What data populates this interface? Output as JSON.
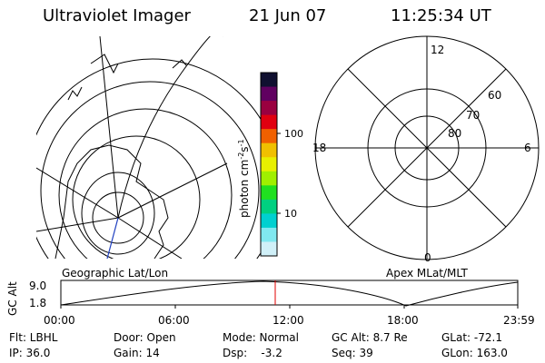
{
  "header": {
    "instrument": "Ultraviolet Imager",
    "date": "21 Jun 07",
    "time": "11:25:34 UT"
  },
  "colorbar": {
    "unit_label": "photon cm",
    "unit_exp1": "-2",
    "unit_mid": "s",
    "unit_exp2": "-1",
    "tick_100": "100",
    "tick_10": "10",
    "colors": [
      "#101030",
      "#600060",
      "#9a0040",
      "#e00010",
      "#f06000",
      "#f0c000",
      "#e8f000",
      "#a0f000",
      "#20e020",
      "#00d080",
      "#00d0d0",
      "#80e8f0",
      "#d0f0f8"
    ]
  },
  "left_map": {
    "label": "Geographic Lat/Lon"
  },
  "right_map": {
    "label": "Apex MLat/MLT",
    "mlt_12": "12",
    "mlt_18": "18",
    "mlt_6": "6",
    "mlt_0": "0",
    "lat_60": "60",
    "lat_70": "70",
    "lat_80": "80"
  },
  "orbit": {
    "axis_title": "GC Alt",
    "y_top": "9.0",
    "y_bottom": "1.8",
    "x_ticks": [
      "00:00",
      "06:00",
      "12:00",
      "18:00",
      "23:59"
    ],
    "marker_color": "#e00000"
  },
  "info": {
    "filter": "Flt: LBHL",
    "ip": "IP: 36.0",
    "door": "Door: Open",
    "gain": "Gain: 14",
    "mode": "Mode: Normal",
    "dsp": "Dsp:    -3.2",
    "gc_alt": "GC Alt: 8.7 Re",
    "seq": "Seq: 39",
    "glat": "GLat: -72.1",
    "glon": "GLon: 163.0"
  }
}
